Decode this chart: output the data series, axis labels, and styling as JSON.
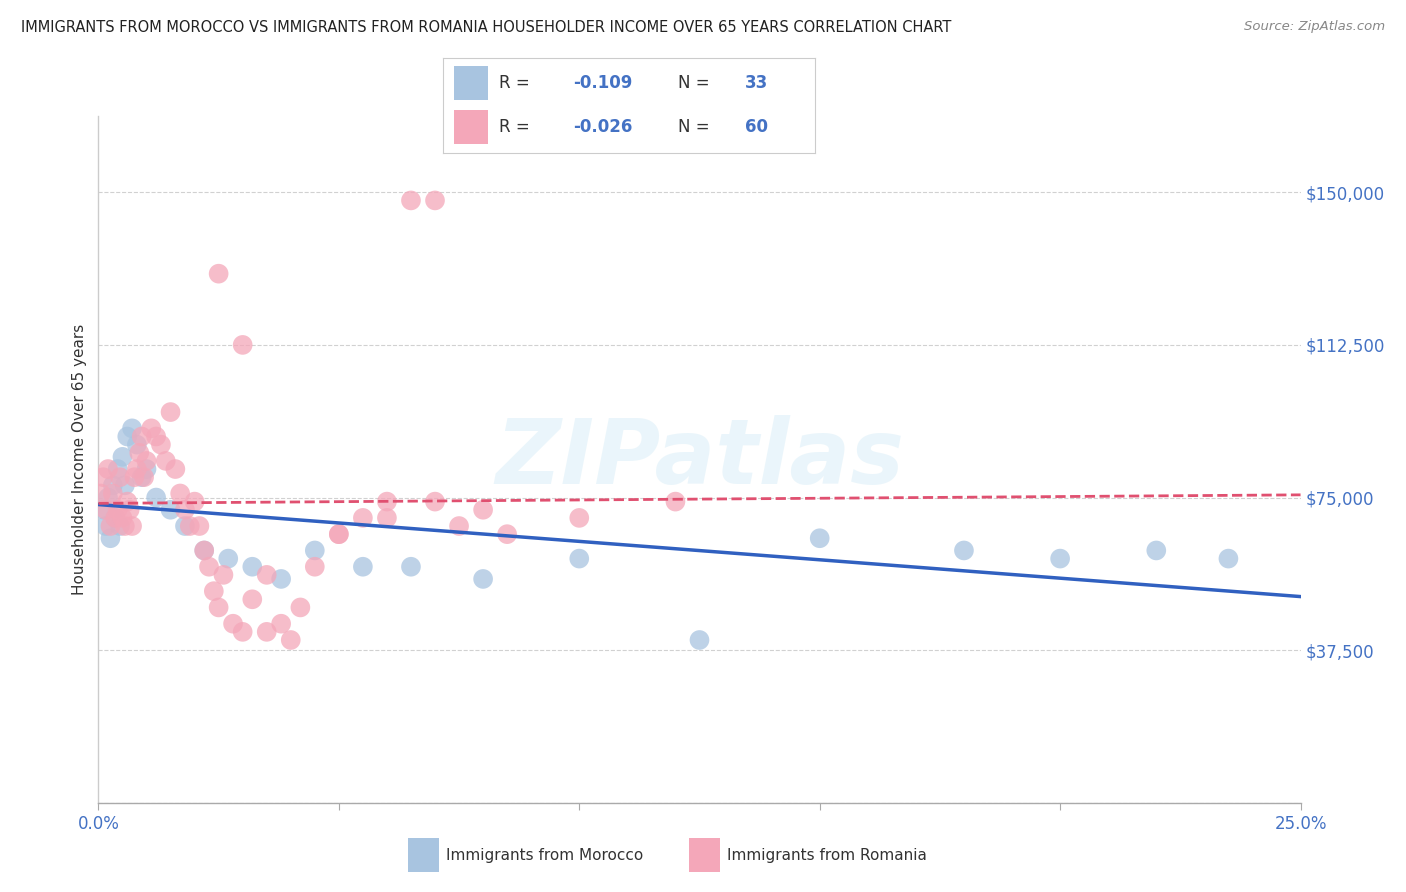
{
  "title": "IMMIGRANTS FROM MOROCCO VS IMMIGRANTS FROM ROMANIA HOUSEHOLDER INCOME OVER 65 YEARS CORRELATION CHART",
  "source": "Source: ZipAtlas.com",
  "ylabel": "Householder Income Over 65 years",
  "xlim": [
    0.0,
    25.0
  ],
  "ylim": [
    0,
    168750
  ],
  "yticks": [
    0,
    37500,
    75000,
    112500,
    150000
  ],
  "ytick_labels": [
    "",
    "$37,500",
    "$75,000",
    "$112,500",
    "$150,000"
  ],
  "watermark": "ZIPatlas",
  "morocco_color": "#a8c4e0",
  "romania_color": "#f4a7b9",
  "morocco_line_color": "#3060c0",
  "romania_line_color": "#e05070",
  "morocco_R": -0.109,
  "morocco_N": 33,
  "romania_R": -0.026,
  "romania_N": 60,
  "legend_label_morocco": "Immigrants from Morocco",
  "legend_label_romania": "Immigrants from Romania",
  "morocco_x": [
    0.1,
    0.15,
    0.2,
    0.25,
    0.3,
    0.35,
    0.4,
    0.45,
    0.5,
    0.55,
    0.6,
    0.7,
    0.8,
    0.9,
    1.0,
    1.2,
    1.5,
    1.8,
    2.2,
    2.7,
    3.2,
    3.8,
    4.5,
    5.5,
    6.5,
    8.0,
    10.0,
    12.5,
    15.0,
    18.0,
    20.0,
    22.0,
    23.5
  ],
  "morocco_y": [
    72000,
    68000,
    75000,
    65000,
    78000,
    70000,
    82000,
    68000,
    85000,
    78000,
    90000,
    92000,
    88000,
    80000,
    82000,
    75000,
    72000,
    68000,
    62000,
    60000,
    58000,
    55000,
    62000,
    58000,
    58000,
    55000,
    60000,
    40000,
    65000,
    62000,
    60000,
    62000,
    60000
  ],
  "romania_x": [
    0.05,
    0.1,
    0.15,
    0.2,
    0.25,
    0.3,
    0.35,
    0.4,
    0.45,
    0.5,
    0.55,
    0.6,
    0.65,
    0.7,
    0.75,
    0.8,
    0.85,
    0.9,
    0.95,
    1.0,
    1.1,
    1.2,
    1.3,
    1.4,
    1.5,
    1.6,
    1.7,
    1.8,
    1.9,
    2.0,
    2.1,
    2.2,
    2.3,
    2.4,
    2.5,
    2.6,
    2.8,
    3.0,
    3.2,
    3.5,
    3.8,
    4.2,
    4.5,
    5.0,
    5.5,
    6.0,
    6.5,
    7.0,
    7.5,
    8.0,
    2.5,
    3.0,
    3.5,
    4.0,
    5.0,
    6.0,
    7.0,
    8.5,
    10.0,
    12.0
  ],
  "romania_y": [
    76000,
    80000,
    72000,
    82000,
    68000,
    76000,
    70000,
    72000,
    80000,
    70000,
    68000,
    74000,
    72000,
    68000,
    80000,
    82000,
    86000,
    90000,
    80000,
    84000,
    92000,
    90000,
    88000,
    84000,
    96000,
    82000,
    76000,
    72000,
    68000,
    74000,
    68000,
    62000,
    58000,
    52000,
    48000,
    56000,
    44000,
    42000,
    50000,
    56000,
    44000,
    48000,
    58000,
    66000,
    70000,
    74000,
    148000,
    148000,
    68000,
    72000,
    130000,
    112500,
    42000,
    40000,
    66000,
    70000,
    74000,
    66000,
    70000,
    74000
  ]
}
